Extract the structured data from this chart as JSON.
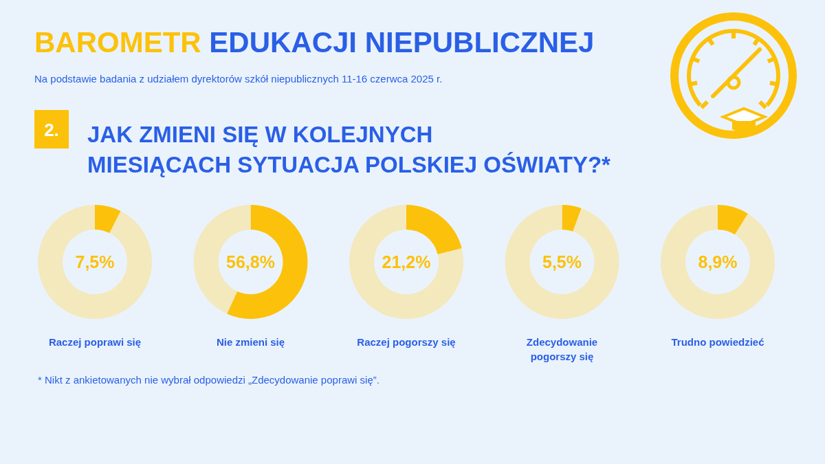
{
  "chart_data": [
    {
      "type": "donut",
      "title": "BAROMETR EDUKACJI NIEPUBLICZNEJ",
      "subtitle": "Na podstawie badania z udziałem dyrektorów szkół niepublicznych 11-16 czerwca 2025 r.",
      "annotations": [
        "2.",
        "JAK ZMIENI SIĘ W KOLEJNYCH MIESIĄCACH SYTUACJA POLSKIEJ OŚWIATY?*",
        "* Nikt z ankietowanych nie wybrał odpowiedzi „Zdecydowanie poprawi się”."
      ],
      "xlabel": "Raczej poprawi się",
      "categories": [
        null,
        null
      ],
      "values": [
        7.5,
        92.5
      ],
      "colors": [
        "#fcc10a",
        "#f4e8bd"
      ],
      "value_labels": [
        "7,5%",
        null
      ]
    },
    {
      "type": "donut",
      "xlabel": "Nie zmieni się",
      "categories": [
        null,
        null
      ],
      "values": [
        56.8,
        43.2
      ],
      "colors": [
        "#fcc10a",
        "#f4e8bd"
      ],
      "value_labels": [
        "56,8%",
        null
      ]
    },
    {
      "type": "donut",
      "xlabel": "Raczej pogorszy się",
      "categories": [
        null,
        null
      ],
      "values": [
        21.2,
        78.8
      ],
      "colors": [
        "#fcc10a",
        "#f4e8bd"
      ],
      "value_labels": [
        "21,2%",
        null
      ]
    },
    {
      "type": "donut",
      "xlabel": "Zdecydowanie pogorszy się",
      "categories": [
        null,
        null
      ],
      "values": [
        5.5,
        94.5
      ],
      "colors": [
        "#fcc10a",
        "#f4e8bd"
      ],
      "value_labels": [
        "5,5%",
        null
      ]
    },
    {
      "type": "donut",
      "xlabel": "Trudno powiedzieć",
      "categories": [
        null,
        null
      ],
      "values": [
        8.9,
        91.1
      ],
      "colors": [
        "#fcc10a",
        "#f4e8bd"
      ],
      "value_labels": [
        "8,9%",
        null
      ]
    }
  ]
}
